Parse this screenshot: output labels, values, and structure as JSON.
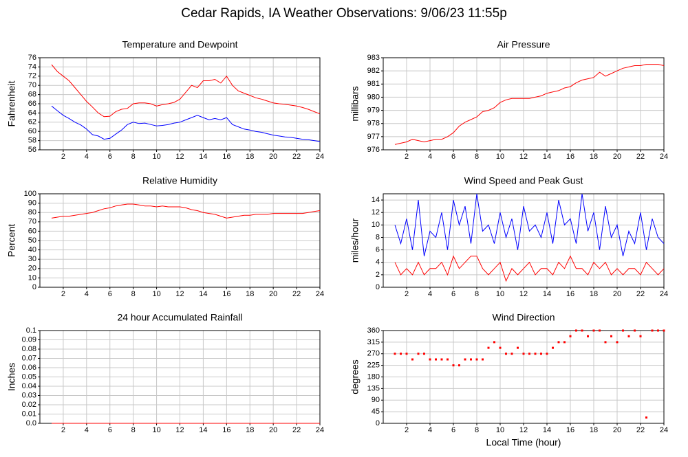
{
  "title": "Cedar Rapids, IA Weather Observations: 9/06/23 11:55p",
  "chart_data": [
    {
      "type": "line",
      "title": "Temperature and Dewpoint",
      "ylabel": "Fahrenheit",
      "x": [
        1,
        1.5,
        2,
        2.5,
        3,
        3.5,
        4,
        4.5,
        5,
        5.5,
        6,
        6.5,
        7,
        7.5,
        8,
        8.5,
        9,
        9.5,
        10,
        10.5,
        11,
        11.5,
        12,
        12.5,
        13,
        13.5,
        14,
        14.5,
        15,
        15.5,
        16,
        16.5,
        17,
        17.5,
        18,
        18.5,
        19,
        19.5,
        20,
        20.5,
        21,
        21.5,
        22,
        22.5,
        23,
        23.5,
        24
      ],
      "series": [
        {
          "color": "#ff0000",
          "values": [
            74.5,
            73,
            72,
            71,
            69.5,
            68,
            66.5,
            65.3,
            64,
            63.2,
            63.3,
            64.3,
            64.8,
            65,
            66,
            66.2,
            66.2,
            66,
            65.5,
            65.8,
            66,
            66.3,
            67,
            68.5,
            70,
            69.5,
            71,
            71,
            71.3,
            70.5,
            72,
            70,
            68.8,
            68.3,
            67.8,
            67.3,
            67,
            66.6,
            66.2,
            66,
            65.9,
            65.7,
            65.5,
            65.2,
            64.8,
            64.3,
            63.8
          ]
        },
        {
          "color": "#0000ff",
          "values": [
            65.5,
            64.5,
            63.5,
            62.8,
            62,
            61.4,
            60.5,
            59.3,
            59,
            58.3,
            58.5,
            59.4,
            60.3,
            61.5,
            62,
            61.7,
            61.8,
            61.5,
            61.2,
            61.3,
            61.5,
            61.8,
            62,
            62.5,
            63,
            63.5,
            63,
            62.5,
            62.8,
            62.5,
            63,
            61.5,
            61,
            60.5,
            60.3,
            60,
            59.8,
            59.5,
            59.2,
            59,
            58.8,
            58.7,
            58.5,
            58.3,
            58.2,
            58,
            57.8
          ]
        }
      ],
      "xlim": [
        0,
        24
      ],
      "xticks": [
        2,
        4,
        6,
        8,
        10,
        12,
        14,
        16,
        18,
        20,
        22,
        24
      ],
      "ylim": [
        56,
        76
      ],
      "yticks": [
        56,
        58,
        60,
        62,
        64,
        66,
        68,
        70,
        72,
        74,
        76
      ],
      "grid": true
    },
    {
      "type": "line",
      "title": "Air Pressure",
      "ylabel": "millibars",
      "x": [
        1,
        1.5,
        2,
        2.5,
        3,
        3.5,
        4,
        4.5,
        5,
        5.5,
        6,
        6.5,
        7,
        7.5,
        8,
        8.5,
        9,
        9.5,
        10,
        10.5,
        11,
        11.5,
        12,
        12.5,
        13,
        13.5,
        14,
        14.5,
        15,
        15.5,
        16,
        16.5,
        17,
        17.5,
        18,
        18.5,
        19,
        19.5,
        20,
        20.5,
        21,
        21.5,
        22,
        22.5,
        23,
        23.5,
        24
      ],
      "series": [
        {
          "color": "#ff0000",
          "values": [
            976.4,
            976.5,
            976.6,
            976.8,
            976.7,
            976.6,
            976.7,
            976.8,
            976.8,
            977,
            977.3,
            977.8,
            978.1,
            978.3,
            978.5,
            978.9,
            979,
            979.2,
            979.6,
            979.8,
            979.9,
            979.9,
            979.9,
            979.9,
            980,
            980.1,
            980.3,
            980.4,
            980.5,
            980.7,
            980.8,
            981.1,
            981.3,
            981.4,
            981.5,
            981.9,
            981.6,
            981.8,
            982,
            982.2,
            982.3,
            982.4,
            982.4,
            982.5,
            982.5,
            982.5,
            982.4
          ]
        }
      ],
      "xlim": [
        0,
        24
      ],
      "xticks": [
        2,
        4,
        6,
        8,
        10,
        12,
        14,
        16,
        18,
        20,
        22,
        24
      ],
      "ylim": [
        976,
        983
      ],
      "yticks": [
        976,
        977,
        978,
        979,
        980,
        981,
        982,
        983
      ],
      "grid": true
    },
    {
      "type": "line",
      "title": "Relative Humidity",
      "ylabel": "Percent",
      "x": [
        1,
        1.5,
        2,
        2.5,
        3,
        3.5,
        4,
        4.5,
        5,
        5.5,
        6,
        6.5,
        7,
        7.5,
        8,
        8.5,
        9,
        9.5,
        10,
        10.5,
        11,
        11.5,
        12,
        12.5,
        13,
        13.5,
        14,
        14.5,
        15,
        15.5,
        16,
        16.5,
        17,
        17.5,
        18,
        18.5,
        19,
        19.5,
        20,
        20.5,
        21,
        21.5,
        22,
        22.5,
        23,
        23.5,
        24
      ],
      "series": [
        {
          "color": "#ff0000",
          "values": [
            74,
            75,
            76,
            76,
            77,
            78,
            79,
            80,
            82,
            84,
            85,
            87,
            88,
            89,
            89,
            88,
            87,
            87,
            86,
            87,
            86,
            86,
            86,
            85,
            83,
            82,
            80,
            79,
            78,
            76,
            74,
            75,
            76,
            77,
            77,
            78,
            78,
            78,
            79,
            79,
            79,
            79,
            79,
            79,
            80,
            81,
            82
          ]
        }
      ],
      "xlim": [
        0,
        24
      ],
      "xticks": [
        2,
        4,
        6,
        8,
        10,
        12,
        14,
        16,
        18,
        20,
        22,
        24
      ],
      "ylim": [
        0,
        100
      ],
      "yticks": [
        0,
        10,
        20,
        30,
        40,
        50,
        60,
        70,
        80,
        90,
        100
      ],
      "grid": true
    },
    {
      "type": "line",
      "title": "Wind Speed and Peak Gust",
      "ylabel": "miles/hour",
      "x": [
        1,
        1.5,
        2,
        2.5,
        3,
        3.5,
        4,
        4.5,
        5,
        5.5,
        6,
        6.5,
        7,
        7.5,
        8,
        8.5,
        9,
        9.5,
        10,
        10.5,
        11,
        11.5,
        12,
        12.5,
        13,
        13.5,
        14,
        14.5,
        15,
        15.5,
        16,
        16.5,
        17,
        17.5,
        18,
        18.5,
        19,
        19.5,
        20,
        20.5,
        21,
        21.5,
        22,
        22.5,
        23,
        23.5,
        24
      ],
      "series": [
        {
          "color": "#0000ff",
          "values": [
            10,
            7,
            11,
            6,
            14,
            5,
            9,
            8,
            12,
            6,
            14,
            10,
            13,
            7,
            15,
            9,
            10,
            7,
            12,
            8,
            11,
            6,
            13,
            9,
            10,
            8,
            12,
            7,
            14,
            10,
            11,
            7,
            15,
            9,
            12,
            6,
            13,
            8,
            10,
            5,
            9,
            7,
            12,
            6,
            11,
            8,
            7
          ]
        },
        {
          "color": "#ff0000",
          "values": [
            4,
            2,
            3,
            2,
            4,
            2,
            3,
            3,
            4,
            2,
            5,
            3,
            4,
            5,
            5,
            3,
            2,
            3,
            4,
            1,
            3,
            2,
            3,
            4,
            2,
            3,
            3,
            2,
            4,
            3,
            5,
            3,
            3,
            2,
            4,
            3,
            4,
            2,
            3,
            2,
            3,
            3,
            2,
            4,
            3,
            2,
            3
          ]
        }
      ],
      "xlim": [
        0,
        24
      ],
      "xticks": [
        2,
        4,
        6,
        8,
        10,
        12,
        14,
        16,
        18,
        20,
        22,
        24
      ],
      "ylim": [
        0,
        15
      ],
      "yticks": [
        0,
        2,
        4,
        6,
        8,
        10,
        12,
        14
      ],
      "grid": true
    },
    {
      "type": "line",
      "title": "24 hour Accumulated Rainfall",
      "ylabel": "Inches",
      "x": [
        1,
        24
      ],
      "series": [
        {
          "color": "#ff0000",
          "values": [
            0,
            0
          ]
        }
      ],
      "xlim": [
        0,
        24
      ],
      "xticks": [
        2,
        4,
        6,
        8,
        10,
        12,
        14,
        16,
        18,
        20,
        22,
        24
      ],
      "ylim": [
        0,
        0.1
      ],
      "yticks": [
        {
          "value": 0,
          "label": "0.0"
        },
        0.01,
        0.02,
        0.03,
        0.04,
        0.05,
        0.06,
        0.07,
        0.08,
        0.09,
        0.1
      ],
      "grid": true
    },
    {
      "type": "scatter",
      "title": "Wind Direction",
      "ylabel": "degrees",
      "xlabel": "Local Time (hour)",
      "x": [
        1,
        1.5,
        2,
        2.5,
        3,
        3.5,
        4,
        4.5,
        5,
        5.5,
        6,
        6.5,
        7,
        7.5,
        8,
        8.5,
        9,
        9.5,
        10,
        10.5,
        11,
        11.5,
        12,
        12.5,
        13,
        13.5,
        14,
        14.5,
        15,
        15.5,
        16,
        16.5,
        17,
        17.5,
        18,
        18.5,
        19,
        19.5,
        20,
        20.5,
        21,
        21.5,
        22,
        22.5,
        23,
        23.5,
        24
      ],
      "series": [
        {
          "color": "#ff0000",
          "values": [
            270,
            270,
            270,
            248,
            270,
            270,
            248,
            248,
            248,
            248,
            225,
            225,
            248,
            248,
            248,
            248,
            293,
            315,
            293,
            270,
            270,
            293,
            270,
            270,
            270,
            270,
            270,
            293,
            315,
            315,
            338,
            360,
            360,
            338,
            360,
            360,
            315,
            338,
            315,
            360,
            338,
            360,
            338,
            22.5,
            360,
            360,
            360
          ]
        }
      ],
      "xlim": [
        0,
        24
      ],
      "xticks": [
        2,
        4,
        6,
        8,
        10,
        12,
        14,
        16,
        18,
        20,
        22,
        24
      ],
      "ylim": [
        0,
        360
      ],
      "yticks": [
        0,
        45,
        90,
        135,
        180,
        225,
        270,
        315,
        360
      ],
      "grid": true
    }
  ]
}
